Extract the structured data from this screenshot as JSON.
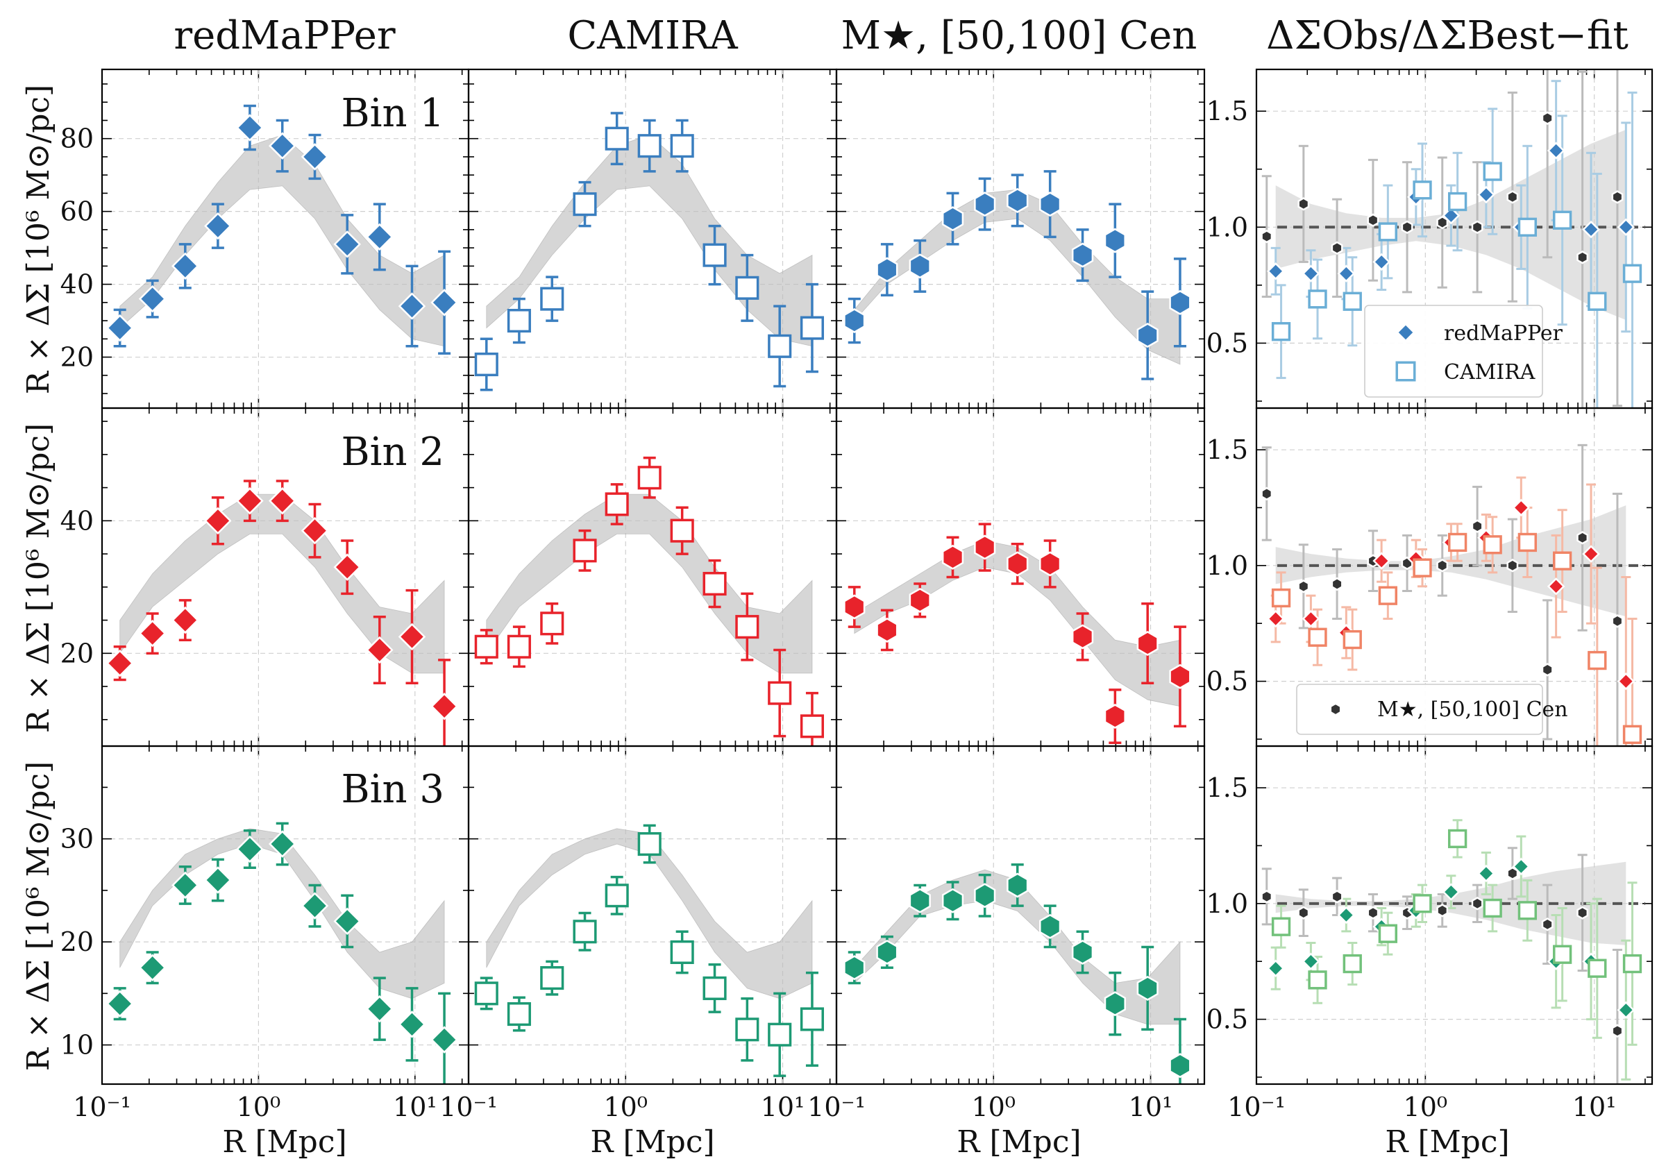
{
  "figure": {
    "column_titles": [
      "redMaPPer",
      "CAMIRA",
      "M★, [50,100] Cen",
      "ΔΣObs/ΔΣBest−fit"
    ],
    "bin_labels": [
      "Bin 1",
      "Bin 2",
      "Bin 3"
    ],
    "xlabel": "R [Mpc]",
    "ylabel": "R × ΔΣ [10⁶ M⊙/pc]",
    "x_tick_labels": [
      "10⁻¹",
      "10⁰",
      "10¹"
    ],
    "legend_row1": [
      "redMaPPer",
      "CAMIRA"
    ],
    "legend_row2": [
      "M★, [50,100] Cen"
    ]
  },
  "chart_data": {
    "type": "scatter",
    "x_scale": "log",
    "xlim": [
      0.1,
      22
    ],
    "radii": [
      0.13,
      0.21,
      0.34,
      0.55,
      0.88,
      1.42,
      2.29,
      3.69,
      5.94,
      9.57,
      15.4
    ],
    "panels": [
      {
        "ylim": [
          6,
          99
        ],
        "yticks": [
          20,
          40,
          60,
          80
        ],
        "band_lower": [
          28,
          36,
          48,
          58,
          66,
          67,
          58,
          44,
          33,
          25,
          23
        ],
        "band_upper": [
          34,
          42,
          56,
          68,
          78,
          81,
          73,
          58,
          48,
          43,
          48
        ],
        "cen_band_lower": [
          30,
          40,
          46,
          52,
          57,
          58,
          52,
          42,
          31,
          22,
          18
        ],
        "cen_band_upper": [
          33,
          44,
          52,
          60,
          65,
          66,
          62,
          51,
          42,
          36,
          36
        ],
        "series": [
          {
            "name": "redMaPPer",
            "marker": "diamond",
            "color": "#3a7ebf",
            "filled": true,
            "y": [
              28,
              36,
              45,
              56,
              83,
              78,
              75,
              51,
              53,
              34,
              35
            ],
            "err": [
              5,
              5,
              6,
              6,
              6,
              7,
              6,
              8,
              9,
              11,
              14
            ]
          },
          {
            "name": "CAMIRA",
            "marker": "square",
            "color": "#3a7ebf",
            "filled": false,
            "y": [
              18,
              30,
              36,
              62,
              80,
              78,
              78,
              48,
              39,
              23,
              28
            ],
            "err": [
              7,
              6,
              6,
              6,
              7,
              7,
              7,
              8,
              9,
              11,
              12
            ]
          },
          {
            "name": "M★, [50,100] Cen",
            "marker": "hexagon",
            "color": "#3a7ebf",
            "filled": true,
            "y": [
              30,
              44,
              45,
              58,
              62,
              63,
              62,
              48,
              52,
              26,
              35
            ],
            "err": [
              6,
              7,
              7,
              7,
              7,
              7,
              9,
              7,
              10,
              12,
              12
            ]
          }
        ],
        "ratio": {
          "band_lower": [
            0.82,
            0.86,
            0.89,
            0.92,
            0.94,
            0.92,
            0.88,
            0.82,
            0.74,
            0.66,
            0.6
          ],
          "band_upper": [
            1.18,
            1.1,
            1.06,
            1.04,
            1.04,
            1.06,
            1.12,
            1.2,
            1.28,
            1.36,
            1.42
          ],
          "redmapper": {
            "x": [
              0.13,
              0.21,
              0.34,
              0.55,
              0.88,
              1.42,
              2.29,
              3.69,
              5.94,
              9.57,
              15.4
            ],
            "y": [
              0.81,
              0.8,
              0.8,
              0.85,
              1.13,
              1.05,
              1.14,
              1.0,
              1.33,
              0.99,
              1.0
            ],
            "err": [
              0.1,
              0.1,
              0.11,
              0.12,
              0.12,
              0.13,
              0.14,
              0.18,
              0.3,
              0.33,
              0.45
            ]
          },
          "camira": {
            "x": [
              0.14,
              0.23,
              0.37,
              0.6,
              0.96,
              1.55,
              2.5,
              4.02,
              6.47,
              10.4,
              16.8
            ],
            "y": [
              0.55,
              0.69,
              0.68,
              0.98,
              1.16,
              1.11,
              1.24,
              1.0,
              1.03,
              0.68,
              0.8
            ],
            "err": [
              0.2,
              0.17,
              0.19,
              0.2,
              0.2,
              0.21,
              0.27,
              0.35,
              0.45,
              0.55,
              0.78
            ]
          },
          "cen": {
            "x": [
              0.115,
              0.19,
              0.3,
              0.49,
              0.78,
              1.26,
              2.03,
              3.28,
              5.28,
              8.51,
              13.7
            ],
            "y": [
              0.96,
              1.1,
              0.91,
              1.03,
              1.0,
              1.02,
              1.0,
              1.13,
              1.47,
              0.87,
              1.13
            ],
            "err": [
              0.26,
              0.25,
              0.21,
              0.26,
              0.28,
              0.28,
              0.28,
              0.45,
              0.6,
              0.8,
              0.9
            ]
          }
        }
      },
      {
        "ylim": [
          6,
          57
        ],
        "yticks": [
          20,
          40
        ],
        "band_lower": [
          20,
          27,
          31,
          35,
          38,
          38,
          33,
          26,
          20,
          17,
          17
        ],
        "band_upper": [
          25,
          32,
          37,
          41,
          44,
          44,
          40,
          33,
          27,
          26,
          31
        ],
        "cen_band_lower": [
          23,
          26,
          28,
          31,
          33,
          32,
          28,
          22,
          16,
          13,
          12
        ],
        "cen_band_upper": [
          26,
          29,
          32,
          35,
          37,
          36,
          33,
          27,
          22,
          21,
          22
        ],
        "series": [
          {
            "name": "redMaPPer",
            "marker": "diamond",
            "color": "#e8232b",
            "filled": true,
            "y": [
              18.5,
              23,
              25,
              40,
              43,
              43,
              38.5,
              33,
              20.5,
              22.5,
              12
            ],
            "err": [
              2.5,
              3,
              3,
              3.5,
              3,
              3,
              4,
              4,
              5,
              7,
              7
            ]
          },
          {
            "name": "CAMIRA",
            "marker": "square",
            "color": "#e8232b",
            "filled": false,
            "y": [
              21,
              21,
              24.5,
              35.5,
              42.5,
              46.5,
              38.5,
              30.5,
              24,
              14,
              9
            ],
            "err": [
              2.5,
              3,
              3,
              3,
              3,
              3,
              3.5,
              3.5,
              5,
              6.5,
              5
            ]
          },
          {
            "name": "M★, [50,100] Cen",
            "marker": "hexagon",
            "color": "#e8232b",
            "filled": true,
            "y": [
              27,
              23.5,
              28,
              34.5,
              36,
              33.5,
              33.5,
              22.5,
              10.5,
              21.5,
              16.5
            ],
            "err": [
              3,
              3,
              2.5,
              3,
              3.5,
              3,
              3.5,
              3.5,
              4,
              6,
              7.5
            ]
          }
        ],
        "ratio": {
          "band_lower": [
            0.92,
            0.95,
            0.97,
            0.98,
            0.98,
            0.97,
            0.94,
            0.9,
            0.86,
            0.82,
            0.78
          ],
          "band_upper": [
            1.08,
            1.05,
            1.03,
            1.02,
            1.02,
            1.04,
            1.07,
            1.12,
            1.16,
            1.2,
            1.26
          ],
          "redmapper": {
            "x": [
              0.13,
              0.21,
              0.34,
              0.55,
              0.88,
              1.42,
              2.29,
              3.69,
              5.94,
              9.57,
              15.4
            ],
            "y": [
              0.77,
              0.77,
              0.71,
              1.02,
              1.03,
              1.1,
              1.12,
              1.25,
              0.91,
              1.05,
              0.5
            ],
            "err": [
              0.1,
              0.1,
              0.11,
              0.09,
              0.08,
              0.08,
              0.1,
              0.13,
              0.22,
              0.3,
              0.45
            ]
          },
          "camira": {
            "x": [
              0.14,
              0.23,
              0.37,
              0.6,
              0.96,
              1.55,
              2.5,
              4.02,
              6.47,
              10.4,
              16.8
            ],
            "y": [
              0.86,
              0.69,
              0.68,
              0.87,
              0.99,
              1.1,
              1.09,
              1.1,
              1.02,
              0.59,
              0.27
            ],
            "err": [
              0.11,
              0.12,
              0.13,
              0.1,
              0.08,
              0.08,
              0.12,
              0.15,
              0.22,
              0.4,
              0.5
            ]
          },
          "cen": {
            "x": [
              0.115,
              0.19,
              0.3,
              0.49,
              0.78,
              1.26,
              2.03,
              3.28,
              5.28,
              8.51,
              13.7
            ],
            "y": [
              1.31,
              0.91,
              0.92,
              1.02,
              1.01,
              1.0,
              1.17,
              1.0,
              0.55,
              1.12,
              0.76
            ],
            "err": [
              0.2,
              0.18,
              0.15,
              0.13,
              0.12,
              0.13,
              0.17,
              0.2,
              0.3,
              0.4,
              0.55
            ]
          }
        }
      },
      {
        "ylim": [
          6.2,
          39
        ],
        "yticks": [
          10,
          20,
          30
        ],
        "band_lower": [
          17.5,
          23.5,
          26.5,
          28.5,
          29.5,
          28.5,
          24,
          19,
          15.5,
          14.5,
          16
        ],
        "band_upper": [
          20,
          25,
          28.5,
          30,
          31,
          30.5,
          26.5,
          22,
          19,
          20,
          24
        ],
        "cen_band_lower": [
          16,
          19,
          22.5,
          23.5,
          24,
          23,
          20,
          16,
          13,
          12,
          12
        ],
        "cen_band_upper": [
          17.5,
          21,
          24.5,
          26,
          27,
          26,
          22.5,
          18.5,
          16,
          16.5,
          20
        ],
        "series": [
          {
            "name": "redMaPPer",
            "marker": "diamond",
            "color": "#1d9a74",
            "filled": true,
            "y": [
              14,
              17.5,
              25.5,
              26,
              29,
              29.5,
              23.5,
              22,
              13.5,
              12,
              10.5
            ],
            "err": [
              1.5,
              1.5,
              1.8,
              2,
              1.8,
              2,
              2,
              2.5,
              3,
              3.5,
              4.5
            ]
          },
          {
            "name": "CAMIRA",
            "marker": "square",
            "color": "#1d9a74",
            "filled": false,
            "y": [
              15,
              13,
              16.5,
              21,
              24.5,
              29.5,
              19,
              15.5,
              11.5,
              11,
              12.5
            ],
            "err": [
              1.5,
              1.6,
              1.6,
              1.8,
              1.8,
              1.8,
              2,
              2.3,
              3,
              4,
              4.5
            ]
          },
          {
            "name": "M★, [50,100] Cen",
            "marker": "hexagon",
            "color": "#1d9a74",
            "filled": true,
            "y": [
              17.5,
              19,
              24,
              24,
              24.5,
              25.5,
              21.5,
              19,
              14,
              15.5,
              8
            ],
            "err": [
              1.5,
              1.5,
              1.5,
              1.8,
              2,
              2,
              2,
              2,
              3,
              4,
              4.5
            ]
          }
        ],
        "ratio": {
          "band_lower": [
            0.96,
            0.98,
            0.99,
            0.99,
            0.98,
            0.96,
            0.93,
            0.89,
            0.86,
            0.83,
            0.82
          ],
          "band_upper": [
            1.04,
            1.02,
            1.01,
            1.01,
            1.02,
            1.04,
            1.07,
            1.11,
            1.14,
            1.16,
            1.18
          ],
          "redmapper": {
            "x": [
              0.13,
              0.21,
              0.34,
              0.55,
              0.88,
              1.42,
              2.29,
              3.69,
              5.94,
              9.57,
              15.4
            ],
            "y": [
              0.72,
              0.75,
              0.95,
              0.9,
              0.97,
              1.05,
              1.13,
              1.16,
              0.75,
              0.75,
              0.54
            ],
            "err": [
              0.09,
              0.08,
              0.07,
              0.08,
              0.07,
              0.07,
              0.09,
              0.13,
              0.2,
              0.25,
              0.3
            ]
          },
          "camira": {
            "x": [
              0.14,
              0.23,
              0.37,
              0.6,
              0.96,
              1.55,
              2.5,
              4.02,
              6.47,
              10.4,
              16.8
            ],
            "y": [
              0.9,
              0.67,
              0.74,
              0.87,
              1.0,
              1.28,
              0.98,
              0.97,
              0.78,
              0.72,
              0.74
            ],
            "err": [
              0.09,
              0.1,
              0.09,
              0.09,
              0.08,
              0.08,
              0.1,
              0.13,
              0.2,
              0.3,
              0.35
            ]
          },
          "cen": {
            "x": [
              0.115,
              0.19,
              0.3,
              0.49,
              0.78,
              1.26,
              2.03,
              3.28,
              5.28,
              8.51,
              13.7
            ],
            "y": [
              1.03,
              0.96,
              1.03,
              0.96,
              0.96,
              0.97,
              1.0,
              1.13,
              0.91,
              0.96,
              0.45
            ],
            "err": [
              0.12,
              0.1,
              0.08,
              0.08,
              0.07,
              0.07,
              0.08,
              0.11,
              0.17,
              0.25,
              0.35
            ]
          }
        }
      }
    ],
    "ratio_ylim": [
      0.22,
      1.68
    ],
    "ratio_yticks": [
      0.5,
      1.0,
      1.5
    ],
    "ratio_ytick_labels": [
      "0.5",
      "1.0",
      "1.5"
    ],
    "ratio_colors": [
      {
        "redmapper": "#3a7ebf",
        "camira": "#6aaed6",
        "cen": "#333333",
        "camira_err": "#a9cce3"
      },
      {
        "redmapper": "#e8232b",
        "camira": "#f08466",
        "cen": "#333333",
        "camira_err": "#f5b9a5"
      },
      {
        "redmapper": "#1d9a74",
        "camira": "#72c17b",
        "cen": "#333333",
        "camira_err": "#b7deb4"
      }
    ]
  }
}
